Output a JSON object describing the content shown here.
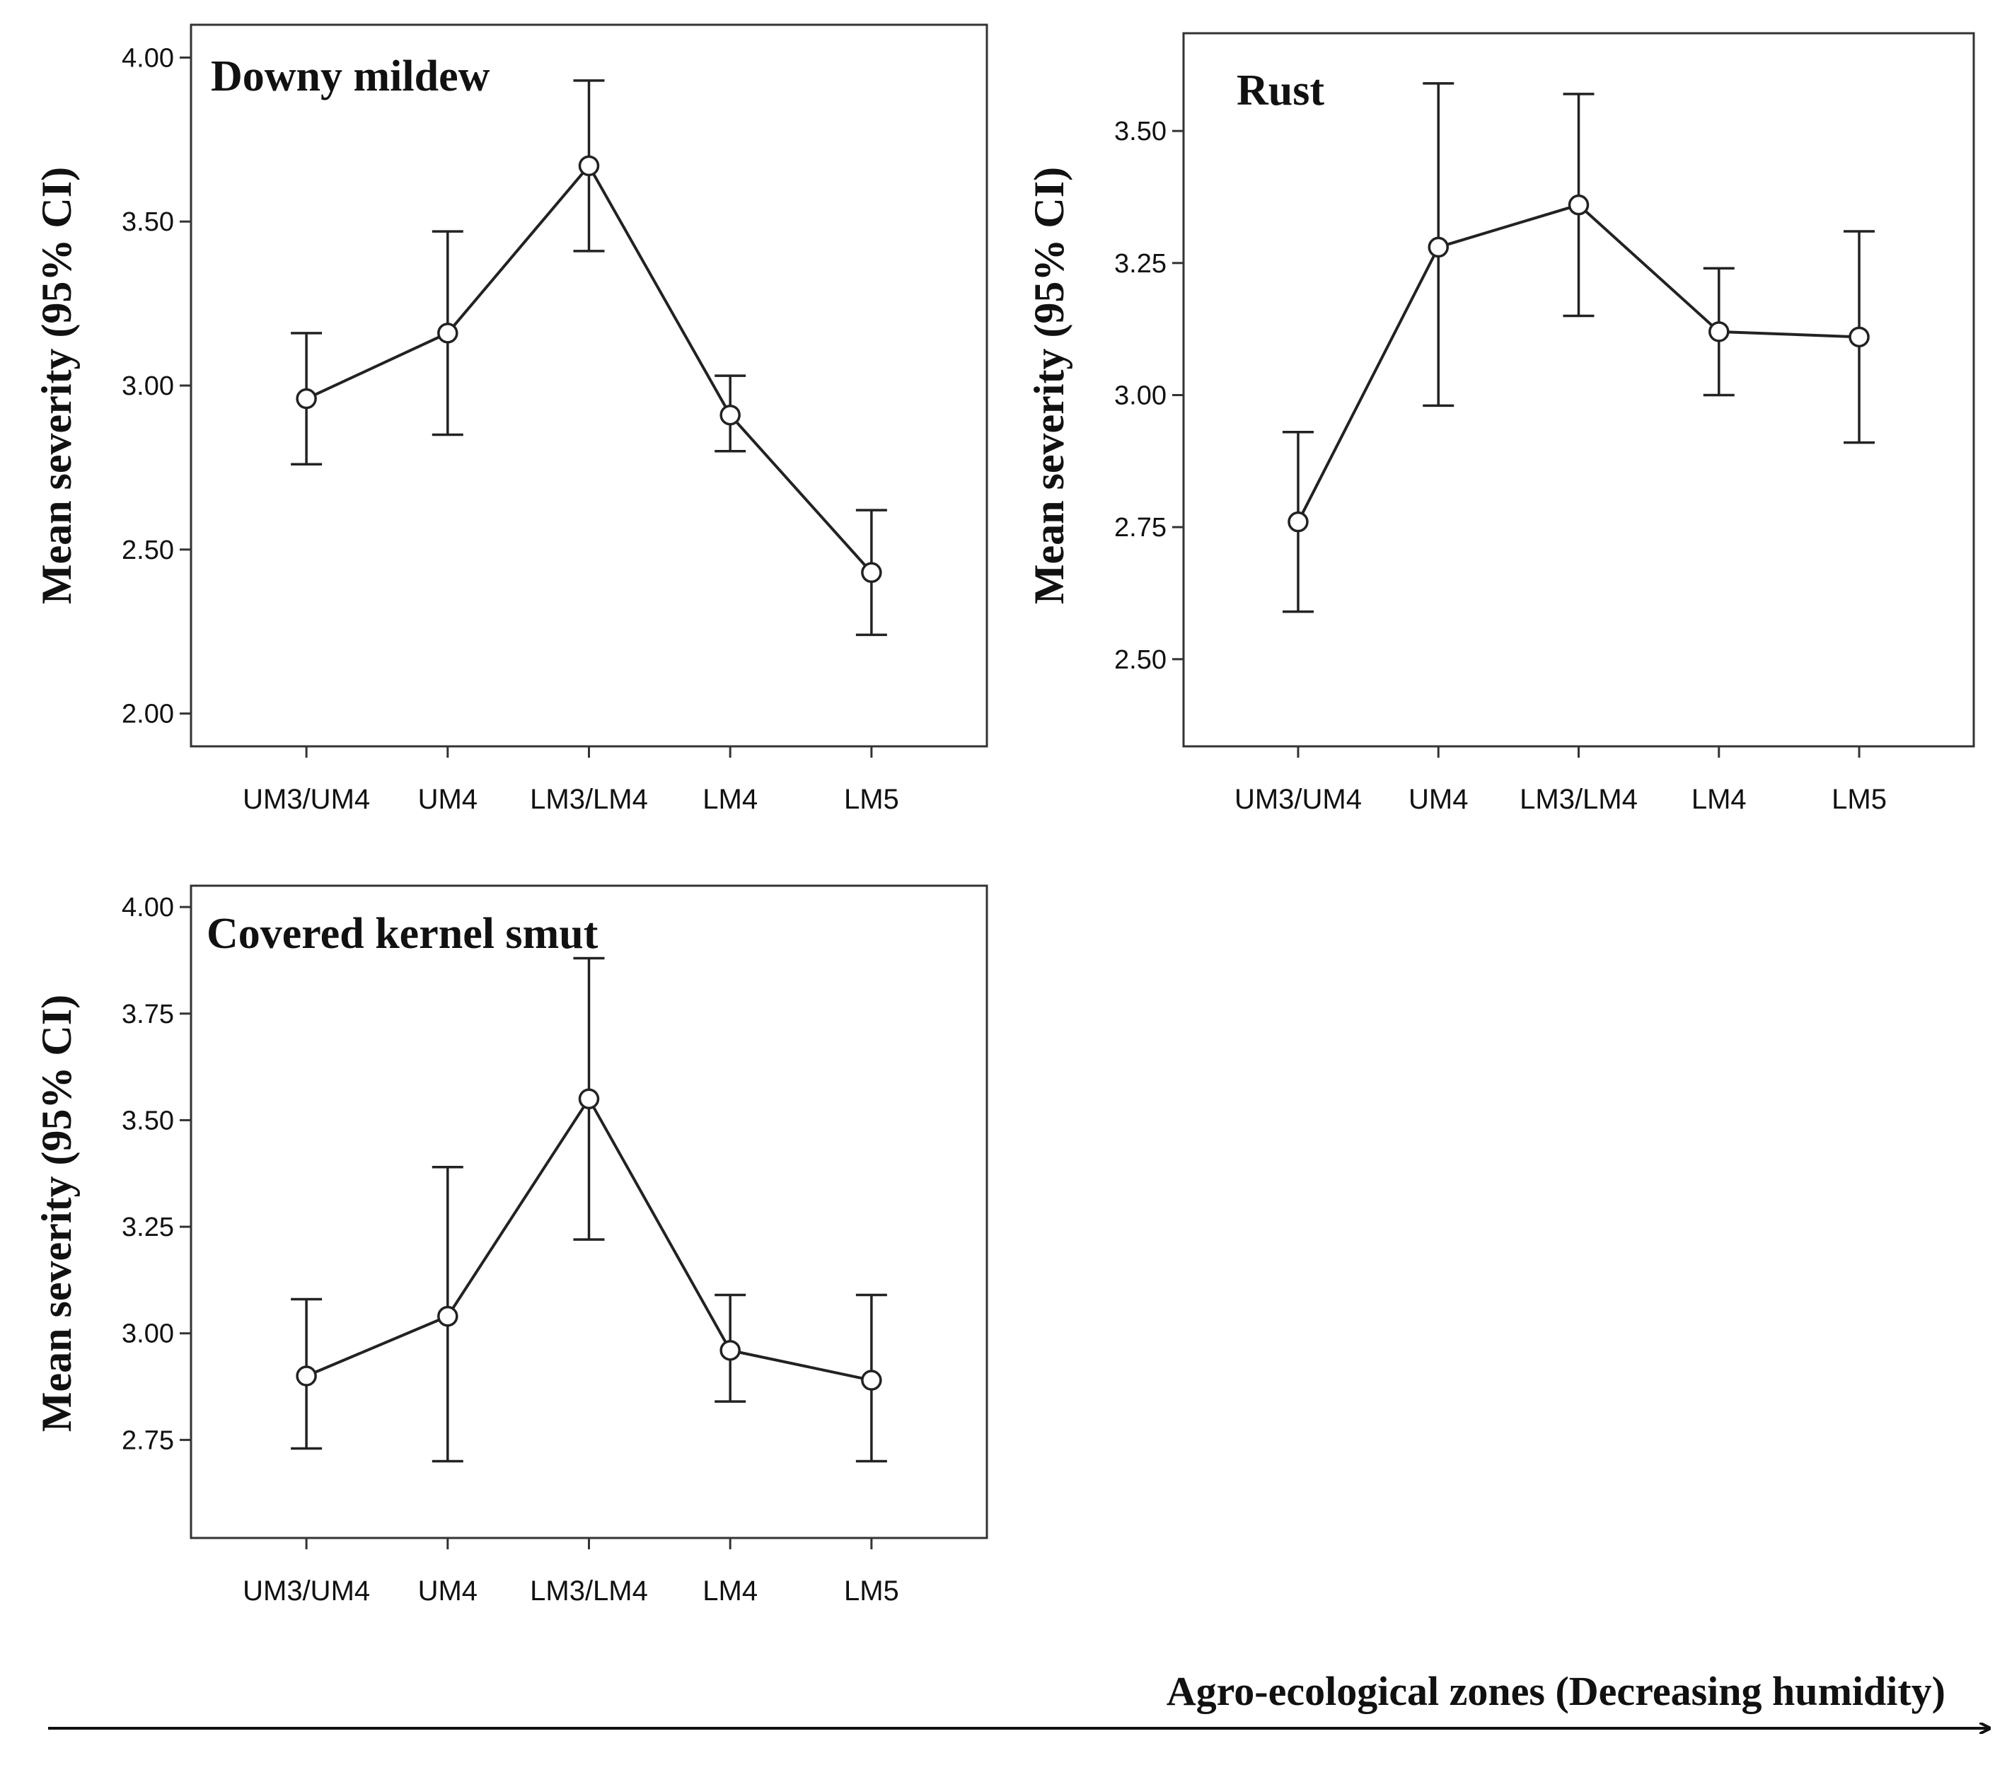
{
  "chart_data": [
    {
      "type": "line",
      "title": "Downy mildew",
      "xlabel": "",
      "ylabel": "Mean severity (95% CI)",
      "categories": [
        "UM3/UM4",
        "UM4",
        "LM3/LM4",
        "LM4",
        "LM5"
      ],
      "values": [
        2.96,
        3.16,
        3.67,
        2.91,
        2.43
      ],
      "ci_low": [
        2.76,
        2.85,
        3.41,
        2.8,
        2.24
      ],
      "ci_high": [
        3.16,
        3.47,
        3.93,
        3.03,
        2.62
      ],
      "ylim": [
        1.9,
        4.1
      ],
      "yticks": [
        2.0,
        2.5,
        3.0,
        3.5,
        4.0
      ],
      "ytick_labels": [
        "2.00",
        "2.50",
        "3.00",
        "3.50",
        "4.00"
      ]
    },
    {
      "type": "line",
      "title": "Rust",
      "xlabel": "",
      "ylabel": "Mean severity (95% CI)",
      "categories": [
        "UM3/UM4",
        "UM4",
        "LM3/LM4",
        "LM4",
        "LM5"
      ],
      "values": [
        2.76,
        3.28,
        3.36,
        3.12,
        3.11
      ],
      "ci_low": [
        2.59,
        2.98,
        3.15,
        3.0,
        2.91
      ],
      "ci_high": [
        2.93,
        3.59,
        3.57,
        3.24,
        3.31
      ],
      "ylim": [
        2.335,
        3.685
      ],
      "yticks": [
        2.5,
        2.75,
        3.0,
        3.25,
        3.5
      ],
      "ytick_labels": [
        "2.50",
        "2.75",
        "3.00",
        "3.25",
        "3.50"
      ]
    },
    {
      "type": "line",
      "title": "Covered kernel smut",
      "xlabel": "",
      "ylabel": "Mean severity (95% CI)",
      "categories": [
        "UM3/UM4",
        "UM4",
        "LM3/LM4",
        "LM4",
        "LM5"
      ],
      "values": [
        2.9,
        3.04,
        3.55,
        2.96,
        2.89
      ],
      "ci_low": [
        2.73,
        2.7,
        3.22,
        2.84,
        2.7
      ],
      "ci_high": [
        3.08,
        3.39,
        3.88,
        3.09,
        3.09
      ],
      "ylim": [
        2.52,
        4.05
      ],
      "yticks": [
        2.75,
        3.0,
        3.25,
        3.5,
        3.75,
        4.0
      ],
      "ytick_labels": [
        "2.75",
        "3.00",
        "3.25",
        "3.50",
        "3.75",
        "4.00"
      ]
    }
  ],
  "footer": {
    "axis_label": "Agro-ecological zones (Decreasing humidity)"
  }
}
